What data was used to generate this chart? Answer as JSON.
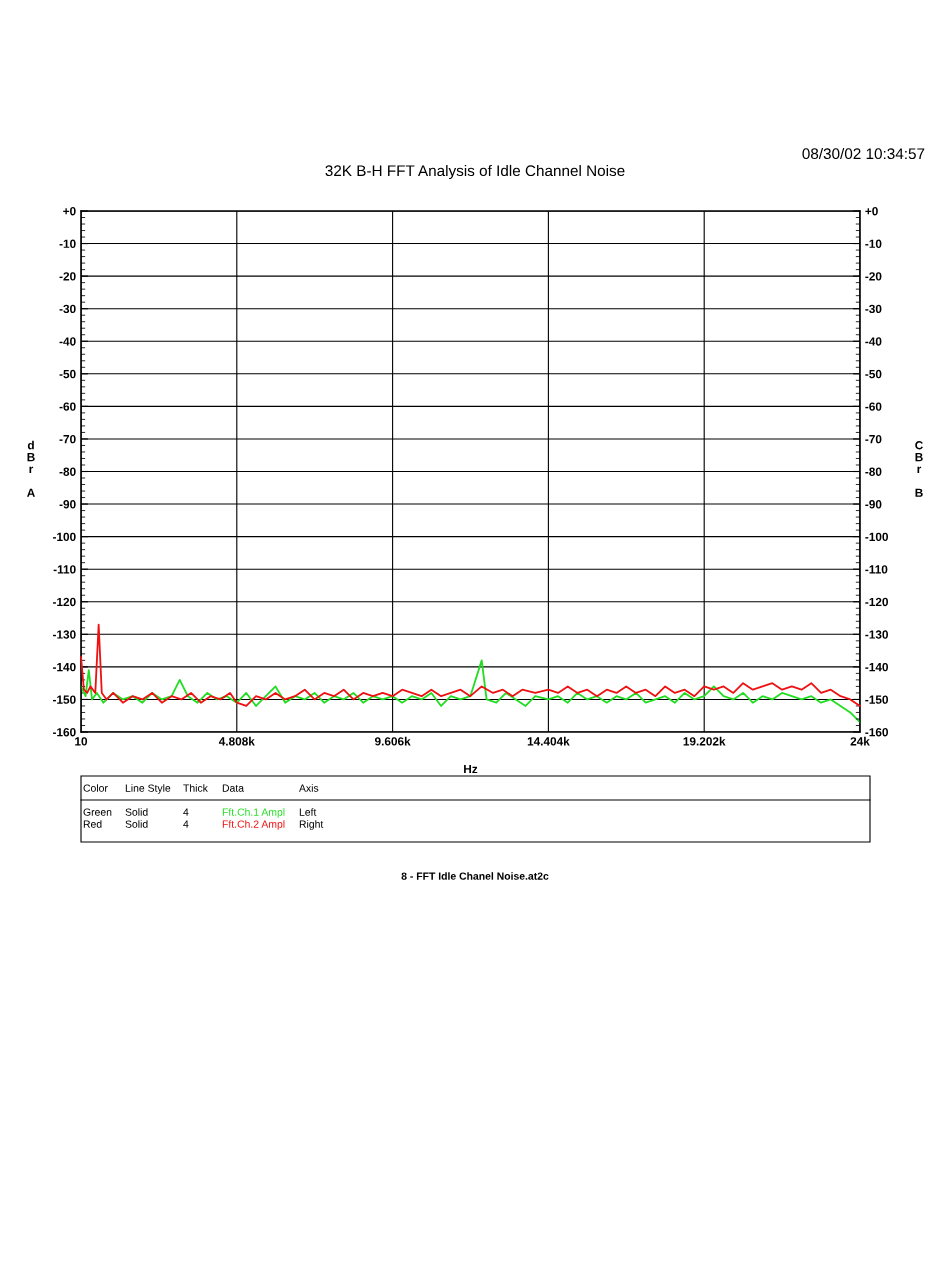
{
  "chart_data": {
    "type": "line",
    "title": "32K B-H FFT Analysis of Idle Channel Noise",
    "xlabel": "Hz",
    "ylabel": "dBr A",
    "y2label": "CBr B",
    "annotations": [
      "08/30/02 10:34:57",
      "8 - FFT Idle Chanel Noise.at2c",
      "Color",
      "Line Style",
      "Thick",
      "Data",
      "Axis",
      "Green",
      "Solid",
      "4",
      "Left",
      "Red",
      "Solid",
      "4",
      "Right"
    ],
    "xlim": [
      10,
      24000
    ],
    "xticks": [
      10,
      {
        "value": 4808,
        "label": "4.808k"
      },
      {
        "value": 9606,
        "label": "9.606k"
      },
      {
        "value": 14404,
        "label": "14.404k"
      },
      {
        "value": 19202,
        "label": "19.202k"
      },
      {
        "value": 24000,
        "label": "24k"
      }
    ],
    "ylim": [
      -160,
      0
    ],
    "yticks": [
      -160,
      -150,
      -140,
      -130,
      -120,
      -110,
      -100,
      -90,
      -80,
      -70,
      -60,
      -50,
      -40,
      -30,
      -20,
      -10,
      {
        "value": 0,
        "label": "+0"
      }
    ],
    "y2lim": [
      -160,
      0
    ],
    "y2ticks": [
      -160,
      -150,
      -140,
      -130,
      -120,
      -110,
      -100,
      -90,
      -80,
      -70,
      -60,
      -50,
      -40,
      -30,
      -20,
      -10,
      {
        "value": 0,
        "label": "+0"
      }
    ],
    "grid": true,
    "legend": "bottom",
    "line_style": "solid",
    "marker": "none",
    "series": [
      {
        "name": "Fft.Ch.1 Ampl",
        "color": "#22dd22",
        "axis": "y",
        "x": [
          10,
          150,
          250,
          350,
          500,
          700,
          1000,
          1300,
          1600,
          1900,
          2200,
          2500,
          2800,
          3050,
          3300,
          3600,
          3900,
          4200,
          4500,
          4808,
          5100,
          5400,
          5700,
          6000,
          6300,
          6600,
          6900,
          7200,
          7500,
          7800,
          8100,
          8400,
          8700,
          9000,
          9300,
          9606,
          9900,
          10200,
          10500,
          10800,
          11100,
          11400,
          11700,
          12000,
          12350,
          12500,
          12800,
          13100,
          13400,
          13700,
          14000,
          14404,
          14700,
          15000,
          15300,
          15600,
          15900,
          16200,
          16500,
          16800,
          17100,
          17400,
          17700,
          18000,
          18300,
          18600,
          18900,
          19202,
          19500,
          19800,
          20100,
          20400,
          20700,
          21000,
          21300,
          21600,
          21900,
          22200,
          22500,
          22800,
          23100,
          23400,
          23700,
          24000
        ],
        "values": [
          -146,
          -149,
          -141,
          -150,
          -148,
          -151,
          -148,
          -150,
          -149,
          -151,
          -148,
          -150,
          -149,
          -144,
          -149,
          -151,
          -148,
          -150,
          -149,
          -151,
          -148,
          -152,
          -149,
          -146,
          -151,
          -149,
          -150,
          -148,
          -151,
          -149,
          -150,
          -148,
          -151,
          -149,
          -150,
          -149,
          -151,
          -149,
          -150,
          -148,
          -152,
          -149,
          -150,
          -149,
          -138,
          -150,
          -151,
          -148,
          -150,
          -152,
          -149,
          -150,
          -149,
          -151,
          -148,
          -150,
          -149,
          -151,
          -149,
          -150,
          -148,
          -151,
          -150,
          -149,
          -151,
          -148,
          -150,
          -149,
          -146,
          -149,
          -150,
          -148,
          -151,
          -149,
          -150,
          -148,
          -149,
          -150,
          -149,
          -151,
          -150,
          -152,
          -154,
          -157
        ]
      },
      {
        "name": "Fft.Ch.2 Ampl",
        "color": "#ee1111",
        "axis": "y2",
        "x": [
          10,
          100,
          200,
          300,
          450,
          554,
          650,
          800,
          1000,
          1300,
          1600,
          1900,
          2200,
          2500,
          2800,
          3100,
          3400,
          3700,
          4000,
          4300,
          4600,
          4808,
          5100,
          5400,
          5700,
          6000,
          6300,
          6600,
          6900,
          7200,
          7500,
          7800,
          8100,
          8400,
          8700,
          9000,
          9300,
          9606,
          9900,
          10200,
          10500,
          10800,
          11100,
          11400,
          11700,
          12000,
          12350,
          12700,
          13000,
          13300,
          13600,
          14000,
          14404,
          14700,
          15000,
          15300,
          15600,
          15900,
          16200,
          16500,
          16800,
          17100,
          17400,
          17700,
          18000,
          18300,
          18600,
          18900,
          19202,
          19500,
          19800,
          20100,
          20400,
          20700,
          21000,
          21300,
          21600,
          21900,
          22200,
          22500,
          22800,
          23100,
          23400,
          23700,
          24000
        ],
        "values": [
          -137,
          -147,
          -148,
          -146,
          -148,
          -127,
          -148,
          -150,
          -148,
          -151,
          -149,
          -150,
          -148,
          -151,
          -149,
          -150,
          -148,
          -151,
          -149,
          -150,
          -148,
          -151,
          -152,
          -149,
          -150,
          -148,
          -150,
          -149,
          -147,
          -150,
          -148,
          -149,
          -147,
          -150,
          -148,
          -149,
          -148,
          -149,
          -147,
          -148,
          -149,
          -147,
          -149,
          -148,
          -147,
          -149,
          -146,
          -148,
          -147,
          -149,
          -147,
          -148,
          -147,
          -148,
          -146,
          -148,
          -147,
          -149,
          -147,
          -148,
          -146,
          -148,
          -147,
          -149,
          -146,
          -148,
          -147,
          -149,
          -146,
          -147,
          -146,
          -148,
          -145,
          -147,
          -146,
          -145,
          -147,
          -146,
          -147,
          -145,
          -148,
          -147,
          -149,
          -150,
          -152
        ]
      }
    ]
  }
}
